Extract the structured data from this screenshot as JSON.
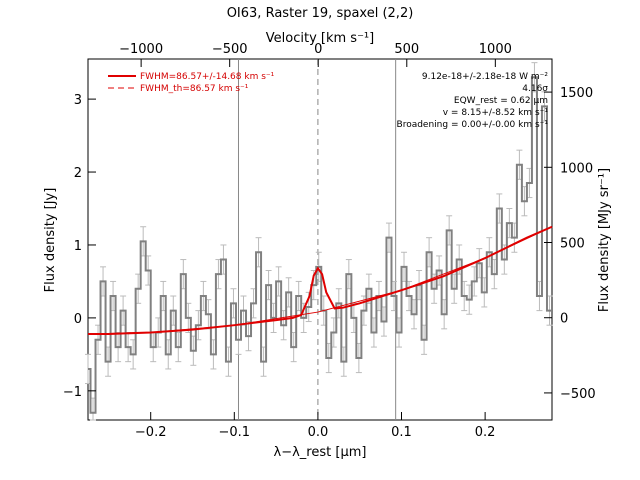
{
  "chart_data": {
    "type": "line",
    "title": "OI63, Raster 19, spaxel (2,2)",
    "xlabel": "λ−λ_rest [μm]",
    "ylabel": "Flux density [Jy]",
    "x2label": "Velocity [km s⁻¹]",
    "y2label": "Flux density [MJy sr⁻¹]",
    "xlim": [
      -0.275,
      0.28
    ],
    "ylim": [
      -1.4,
      3.55
    ],
    "y2lim": [
      -680,
      1720
    ],
    "x2lim": [
      -1300,
      1320
    ],
    "x_ticks": [
      -0.2,
      -0.1,
      0.0,
      0.1,
      0.2
    ],
    "x_tick_labels": [
      "−0.2",
      "−0.1",
      "0.0",
      "0.1",
      "0.2"
    ],
    "y_ticks": [
      -1,
      0,
      1,
      2,
      3
    ],
    "y_tick_labels": [
      "−1",
      "0",
      "1",
      "2",
      "3"
    ],
    "x2_ticks": [
      -1000,
      -500,
      0,
      500,
      1000
    ],
    "x2_tick_labels": [
      "−1000",
      "−500",
      "0",
      "500",
      "1000"
    ],
    "y2_ticks": [
      -500,
      0,
      500,
      1000,
      1500
    ],
    "y2_tick_labels": [
      "−500",
      "0",
      "500",
      "1000",
      "1500"
    ],
    "vertical_lines": [
      -0.095,
      0.0,
      0.093
    ],
    "legend": {
      "placement": "top-left",
      "entries": [
        "FWHM=86.57+/-14.68 km s⁻¹",
        "FWHM_th=86.57 km s⁻¹"
      ]
    },
    "annotations": [
      "9.12e-18+/-2.18e-18 W m⁻²",
      "4.16σ",
      "EQW_rest = 0.62 μm",
      "v = 8.15+/-8.52 km s⁻¹",
      "Broadening = 0.00+/-0.00 km s⁻¹"
    ],
    "series": [
      {
        "name": "data",
        "style": "steps-gray",
        "x": [
          -0.275,
          -0.269,
          -0.263,
          -0.257,
          -0.251,
          -0.245,
          -0.239,
          -0.233,
          -0.227,
          -0.221,
          -0.215,
          -0.209,
          -0.203,
          -0.197,
          -0.191,
          -0.185,
          -0.179,
          -0.173,
          -0.167,
          -0.161,
          -0.155,
          -0.149,
          -0.143,
          -0.137,
          -0.131,
          -0.125,
          -0.119,
          -0.113,
          -0.107,
          -0.101,
          -0.095,
          -0.089,
          -0.083,
          -0.077,
          -0.071,
          -0.065,
          -0.059,
          -0.053,
          -0.047,
          -0.041,
          -0.035,
          -0.029,
          -0.023,
          -0.017,
          -0.011,
          -0.005,
          0.001,
          0.007,
          0.013,
          0.019,
          0.025,
          0.031,
          0.037,
          0.043,
          0.049,
          0.055,
          0.061,
          0.067,
          0.073,
          0.079,
          0.085,
          0.091,
          0.097,
          0.103,
          0.109,
          0.115,
          0.121,
          0.127,
          0.133,
          0.139,
          0.145,
          0.151,
          0.157,
          0.163,
          0.169,
          0.175,
          0.181,
          0.187,
          0.193,
          0.199,
          0.205,
          0.211,
          0.217,
          0.223,
          0.229,
          0.235,
          0.241,
          0.247,
          0.253,
          0.259,
          0.265,
          0.271,
          0.277
        ],
        "y": [
          -0.7,
          -1.3,
          -0.3,
          0.5,
          -0.6,
          0.3,
          -0.4,
          0.1,
          -0.4,
          -0.5,
          0.4,
          1.05,
          0.65,
          -0.4,
          -0.2,
          0.3,
          -0.5,
          0.1,
          -0.4,
          0.6,
          0.0,
          -0.45,
          -0.1,
          0.3,
          0.05,
          -0.5,
          0.6,
          0.8,
          -0.6,
          0.2,
          -0.3,
          0.1,
          -0.25,
          0.2,
          0.9,
          -0.6,
          0.45,
          0.0,
          0.5,
          -0.1,
          0.35,
          -0.4,
          0.3,
          0.0,
          0.15,
          0.45,
          0.7,
          0.1,
          -0.55,
          -0.2,
          0.2,
          -0.6,
          0.6,
          0.0,
          -0.55,
          0.1,
          0.4,
          -0.2,
          0.3,
          -0.05,
          1.1,
          0.3,
          -0.2,
          0.7,
          0.3,
          0.05,
          0.45,
          -0.3,
          0.9,
          0.4,
          0.65,
          0.05,
          1.2,
          0.4,
          0.8,
          0.3,
          0.25,
          0.5,
          0.75,
          0.35,
          0.9,
          0.6,
          1.5,
          0.8,
          1.3,
          1.1,
          2.1,
          1.6,
          1.85,
          3.3,
          0.3,
          2.9,
          0.1
        ],
        "errors": 0.2
      },
      {
        "name": "fit",
        "style": "red",
        "x": [
          -0.275,
          -0.25,
          -0.2,
          -0.15,
          -0.1,
          -0.05,
          -0.03,
          -0.02,
          -0.01,
          -0.005,
          0.0,
          0.005,
          0.01,
          0.02,
          0.03,
          0.05,
          0.1,
          0.15,
          0.2,
          0.25,
          0.28
        ],
        "y": [
          -0.22,
          -0.22,
          -0.2,
          -0.16,
          -0.1,
          -0.03,
          0.0,
          0.04,
          0.3,
          0.58,
          0.68,
          0.6,
          0.35,
          0.13,
          0.14,
          0.2,
          0.38,
          0.57,
          0.82,
          1.1,
          1.25
        ]
      },
      {
        "name": "continuum",
        "style": "red-thin",
        "x": [
          -0.275,
          -0.2,
          -0.1,
          0.0,
          0.1,
          0.2,
          0.28
        ],
        "y": [
          -0.22,
          -0.2,
          -0.1,
          0.08,
          0.38,
          0.82,
          1.25
        ]
      }
    ]
  }
}
